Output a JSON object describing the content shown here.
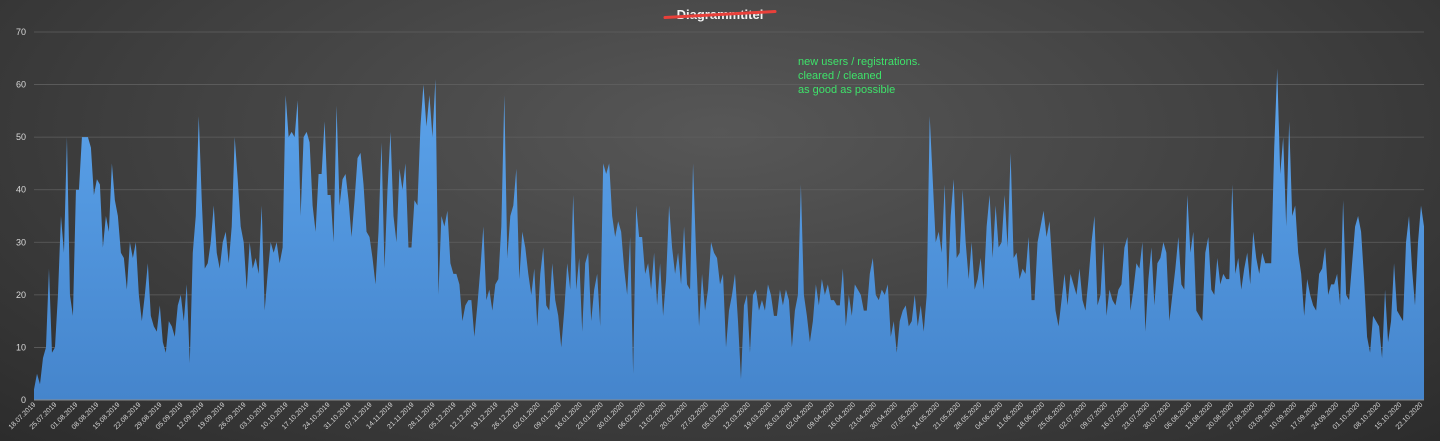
{
  "chart_data": {
    "type": "area",
    "title": "Diagrammtitel",
    "title_struck_through": true,
    "annotation": [
      "new users / registrations.",
      "cleared / cleaned",
      "as good as possible"
    ],
    "xlabel": "",
    "ylabel": "",
    "ylim": [
      0,
      70
    ],
    "yticks": [
      0,
      10,
      20,
      30,
      40,
      50,
      60,
      70
    ],
    "grid": true,
    "colors": {
      "fill": "#4e94dd",
      "fill_top": "#5ca4ec",
      "annotation": "#3ee36a",
      "strike": "#e8403a",
      "grid": "#5f5f5f"
    },
    "x_tick_labels": [
      "18.07.2019",
      "25.07.2019",
      "01.08.2019",
      "08.08.2019",
      "15.08.2019",
      "22.08.2019",
      "29.08.2019",
      "05.09.2019",
      "12.09.2019",
      "19.09.2019",
      "26.09.2019",
      "03.10.2019",
      "10.10.2019",
      "17.10.2019",
      "24.10.2019",
      "31.10.2019",
      "07.11.2019",
      "14.11.2019",
      "21.11.2019",
      "28.11.2019",
      "05.12.2019",
      "12.12.2019",
      "19.12.2019",
      "26.12.2019",
      "02.01.2020",
      "09.01.2020",
      "16.01.2020",
      "23.01.2020",
      "30.01.2020",
      "06.02.2020",
      "13.02.2020",
      "20.02.2020",
      "27.02.2020",
      "05.03.2020",
      "12.03.2020",
      "19.03.2020",
      "26.03.2020",
      "02.04.2020",
      "09.04.2020",
      "16.04.2020",
      "23.04.2020",
      "30.04.2020",
      "07.05.2020",
      "14.05.2020",
      "21.05.2020",
      "28.05.2020",
      "04.06.2020",
      "11.06.2020",
      "18.06.2020",
      "25.06.2020",
      "02.07.2020",
      "09.07.2020",
      "16.07.2020",
      "23.07.2020",
      "30.07.2020",
      "06.08.2020",
      "13.08.2020",
      "20.08.2020",
      "27.08.2020",
      "03.09.2020",
      "10.09.2020",
      "17.09.2020",
      "24.09.2020",
      "01.10.2020",
      "08.10.2020",
      "15.10.2020",
      "22.10.2020"
    ],
    "series": [
      {
        "values": [
          2,
          5,
          3,
          8,
          10,
          25,
          9,
          10,
          20,
          35,
          28,
          50,
          20,
          16,
          40,
          40,
          50,
          50,
          50,
          48,
          39,
          42,
          41,
          29,
          35,
          32,
          45,
          38,
          35,
          28,
          27,
          21,
          30,
          27,
          30,
          20,
          15,
          20,
          26,
          16,
          14,
          13,
          18,
          11,
          9,
          15,
          14,
          12,
          18,
          20,
          15,
          22,
          7,
          28,
          35,
          54,
          38,
          25,
          26,
          30,
          37,
          28,
          25,
          30,
          32,
          26,
          33,
          50,
          42,
          33,
          30,
          21,
          30,
          25,
          27,
          24,
          37,
          17,
          24,
          30,
          28,
          30,
          26,
          29,
          58,
          50,
          51,
          50,
          57,
          35,
          50,
          51,
          49,
          37,
          32,
          43,
          43,
          53,
          39,
          39,
          30,
          56,
          37,
          42,
          43,
          38,
          31,
          38,
          46,
          47,
          41,
          32,
          31,
          27,
          22,
          32,
          49,
          25,
          40,
          51,
          35,
          30,
          44,
          40,
          45,
          29,
          29,
          38,
          37,
          52,
          60,
          52,
          58,
          50,
          61,
          20,
          35,
          33,
          36,
          26,
          24,
          24,
          22,
          15,
          18,
          19,
          19,
          12,
          18,
          25,
          33,
          19,
          21,
          17,
          22,
          23,
          33,
          58,
          27,
          35,
          37,
          44,
          23,
          32,
          29,
          24,
          20,
          25,
          14,
          24,
          29,
          18,
          17,
          26,
          19,
          16,
          10,
          17,
          26,
          21,
          39,
          21,
          27,
          13,
          26,
          28,
          15,
          21,
          24,
          14,
          45,
          43,
          45,
          35,
          31,
          34,
          32,
          25,
          20,
          31,
          5,
          37,
          31,
          31,
          24,
          26,
          21,
          28,
          18,
          26,
          16,
          23,
          37,
          29,
          24,
          28,
          22,
          33,
          22,
          21,
          45,
          28,
          14,
          24,
          17,
          21,
          30,
          28,
          27,
          22,
          24,
          10,
          17,
          20,
          24,
          15,
          4,
          18,
          20,
          9,
          20,
          21,
          17,
          19,
          17,
          22,
          20,
          16,
          16,
          21,
          18,
          21,
          19,
          10,
          17,
          20,
          41,
          20,
          16,
          11,
          15,
          22,
          18,
          23,
          20,
          22,
          19,
          19,
          18,
          18,
          25,
          14,
          20,
          16,
          22,
          21,
          20,
          17,
          17,
          24,
          27,
          20,
          19,
          21,
          20,
          22,
          12,
          15,
          9,
          15,
          17,
          18,
          14,
          15,
          20,
          14,
          18,
          13,
          20,
          54,
          42,
          30,
          32,
          28,
          41,
          21,
          35,
          42,
          27,
          28,
          40,
          30,
          23,
          30,
          21,
          23,
          27,
          21,
          33,
          39,
          27,
          37,
          29,
          30,
          39,
          29,
          47,
          27,
          28,
          23,
          25,
          24,
          31,
          19,
          19,
          30,
          33,
          36,
          31,
          34,
          25,
          17,
          14,
          19,
          24,
          18,
          24,
          22,
          20,
          25,
          19,
          17,
          23,
          30,
          35,
          18,
          20,
          30,
          16,
          21,
          19,
          18,
          21,
          22,
          29,
          31,
          17,
          21,
          26,
          25,
          30,
          13,
          23,
          29,
          18,
          26,
          27,
          30,
          28,
          15,
          20,
          25,
          31,
          22,
          21,
          39,
          28,
          32,
          17,
          16,
          15,
          28,
          31,
          21,
          20,
          27,
          22,
          24,
          23,
          23,
          41,
          24,
          27,
          21,
          25,
          28,
          22,
          32,
          27,
          24,
          28,
          26,
          26,
          26,
          48,
          63,
          43,
          50,
          33,
          53,
          35,
          37,
          28,
          24,
          16,
          23,
          20,
          18,
          17,
          24,
          25,
          29,
          20,
          22,
          22,
          24,
          18,
          38,
          20,
          19,
          26,
          33,
          35,
          32,
          23,
          12,
          9,
          16,
          15,
          14,
          8,
          21,
          11,
          15,
          26,
          17,
          16,
          15,
          30,
          35,
          25,
          18,
          30,
          37,
          33
        ]
      }
    ]
  }
}
